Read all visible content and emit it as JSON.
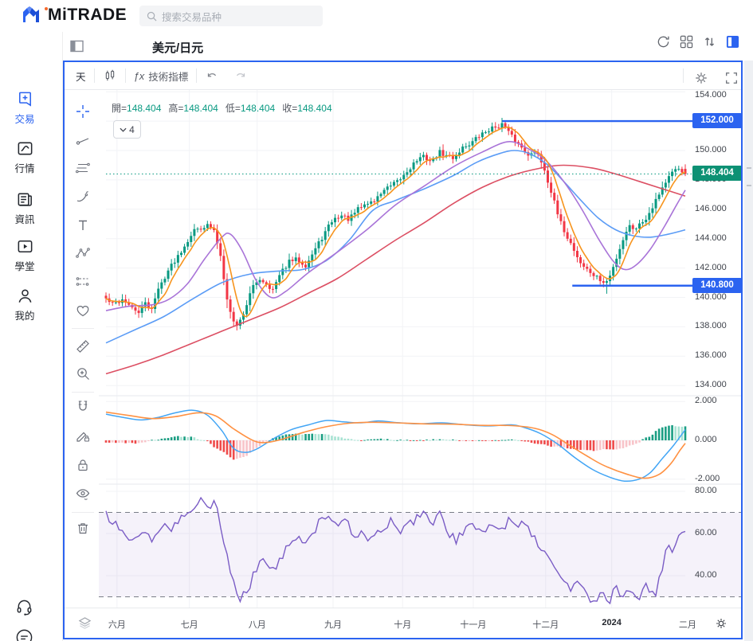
{
  "header": {
    "logo_text": "MiTRADE",
    "search_placeholder": "搜索交易品种"
  },
  "sidebar": {
    "items": [
      {
        "id": "trade",
        "label": "交易",
        "active": true
      },
      {
        "id": "markets",
        "label": "行情",
        "active": false
      },
      {
        "id": "news",
        "label": "資訊",
        "active": false
      },
      {
        "id": "academy",
        "label": "學堂",
        "active": false
      },
      {
        "id": "mine",
        "label": "我的",
        "active": false
      }
    ]
  },
  "symbol_bar": {
    "title": "美元/日元",
    "icons": [
      "refresh-icon",
      "grid-layout-icon",
      "sort-icon",
      "panel-toggle-icon"
    ]
  },
  "chart_toolbar": {
    "timeframe": "天",
    "fx": "ƒx",
    "indicators_label": "技術指標",
    "right_icons": [
      "settings-gear-icon",
      "fullscreen-icon"
    ]
  },
  "legend": {
    "items": [
      {
        "label": "開",
        "key": "open"
      },
      {
        "label": "高",
        "key": "high"
      },
      {
        "label": "低",
        "key": "low"
      },
      {
        "label": "收",
        "key": "close"
      }
    ],
    "ma_dropdown": "4"
  },
  "tools": [
    "crosshair",
    "trend-line",
    "parallel-lines",
    "brush",
    "text",
    "pattern",
    "position",
    "heart",
    "ruler",
    "zoom-in",
    "magnet",
    "draw-lock",
    "lock",
    "eye-hide",
    "trash"
  ],
  "colors": {
    "accent": "#2b63f0",
    "up": "#089981",
    "down": "#f23645",
    "ma_orange": "#f7941d",
    "ma_purple": "#a974d8",
    "ma_blue": "#5b9cf6",
    "ma_red": "#dc4f63",
    "macd_line": "#42a5f5",
    "macd_signal": "#ff9142",
    "hist_pos": "#1b9e83",
    "hist_pos_weak": "#a8e3d3",
    "hist_neg": "#ef4a4a",
    "hist_neg_weak": "#f8c4c9",
    "rsi": "#7a5cc5",
    "grid": "#f2f3f6",
    "separator": "#e7eaee",
    "text_gray": "#787b86"
  },
  "chart_data": {
    "type": "candlestick",
    "symbol": "美元/日元",
    "timeframe": "天",
    "ohlc": {
      "open": "148.404",
      "high": "148.404",
      "low": "148.404",
      "close": "148.404"
    },
    "num_candles": 178,
    "price_axis": {
      "ticks": [
        {
          "v": 154,
          "label": "154.000"
        },
        {
          "v": 152,
          "label": "152.000"
        },
        {
          "v": 150,
          "label": "150.000"
        },
        {
          "v": 148,
          "label": "148.000"
        },
        {
          "v": 146,
          "label": "146.000"
        },
        {
          "v": 144,
          "label": "144.000"
        },
        {
          "v": 142,
          "label": "142.000"
        },
        {
          "v": 140,
          "label": "140.000"
        },
        {
          "v": 138,
          "label": "138.000"
        },
        {
          "v": 136,
          "label": "136.000"
        },
        {
          "v": 134,
          "label": "134.000"
        }
      ],
      "current_price": 148.404,
      "current_label": "148.404"
    },
    "drawn_lines": [
      {
        "price": 152.0,
        "label": "152.000",
        "start_t": 0.684
      },
      {
        "price": 140.8,
        "label": "140.800",
        "start_t": 0.805
      }
    ],
    "months": [
      {
        "label": "六月",
        "t": 0.019,
        "bold": false
      },
      {
        "label": "七月",
        "t": 0.144,
        "bold": false
      },
      {
        "label": "八月",
        "t": 0.261,
        "bold": false
      },
      {
        "label": "九月",
        "t": 0.392,
        "bold": false
      },
      {
        "label": "十月",
        "t": 0.512,
        "bold": false
      },
      {
        "label": "十一月",
        "t": 0.634,
        "bold": false
      },
      {
        "label": "十二月",
        "t": 0.759,
        "bold": false
      },
      {
        "label": "2024",
        "t": 0.873,
        "bold": true
      },
      {
        "label": "二月",
        "t": 1.004,
        "bold": false
      }
    ],
    "close_anchors": [
      [
        0,
        139.9
      ],
      [
        0.012,
        139.5
      ],
      [
        0.03,
        139.9
      ],
      [
        0.045,
        139.2
      ],
      [
        0.058,
        139.0
      ],
      [
        0.068,
        139.6
      ],
      [
        0.078,
        139.2
      ],
      [
        0.09,
        140.5
      ],
      [
        0.105,
        141.7
      ],
      [
        0.12,
        142.6
      ],
      [
        0.135,
        143.5
      ],
      [
        0.15,
        144.5
      ],
      [
        0.165,
        144.8
      ],
      [
        0.178,
        144.9
      ],
      [
        0.188,
        144.4
      ],
      [
        0.198,
        142.8
      ],
      [
        0.208,
        140.2
      ],
      [
        0.218,
        138.4
      ],
      [
        0.228,
        138.1
      ],
      [
        0.24,
        139.2
      ],
      [
        0.252,
        140.6
      ],
      [
        0.265,
        141.3
      ],
      [
        0.278,
        140.9
      ],
      [
        0.288,
        140.5
      ],
      [
        0.3,
        141.5
      ],
      [
        0.315,
        142.4
      ],
      [
        0.33,
        142.6
      ],
      [
        0.345,
        142.2
      ],
      [
        0.36,
        143.2
      ],
      [
        0.375,
        144.2
      ],
      [
        0.39,
        145.2
      ],
      [
        0.405,
        145.6
      ],
      [
        0.42,
        145.3
      ],
      [
        0.435,
        146.0
      ],
      [
        0.45,
        146.4
      ],
      [
        0.465,
        146.6
      ],
      [
        0.478,
        147.3
      ],
      [
        0.49,
        147.5
      ],
      [
        0.505,
        147.9
      ],
      [
        0.52,
        148.6
      ],
      [
        0.535,
        149.3
      ],
      [
        0.55,
        149.6
      ],
      [
        0.562,
        149.2
      ],
      [
        0.575,
        149.9
      ],
      [
        0.588,
        149.6
      ],
      [
        0.6,
        149.5
      ],
      [
        0.615,
        150.2
      ],
      [
        0.63,
        150.5
      ],
      [
        0.645,
        151.0
      ],
      [
        0.66,
        151.4
      ],
      [
        0.672,
        151.6
      ],
      [
        0.685,
        151.8
      ],
      [
        0.695,
        151.2
      ],
      [
        0.708,
        150.6
      ],
      [
        0.72,
        150.1
      ],
      [
        0.732,
        149.7
      ],
      [
        0.745,
        149.9
      ],
      [
        0.758,
        148.6
      ],
      [
        0.77,
        147.0
      ],
      [
        0.782,
        145.3
      ],
      [
        0.794,
        144.3
      ],
      [
        0.806,
        143.4
      ],
      [
        0.818,
        142.4
      ],
      [
        0.83,
        141.9
      ],
      [
        0.842,
        141.5
      ],
      [
        0.852,
        141.2
      ],
      [
        0.862,
        140.9
      ],
      [
        0.872,
        141.6
      ],
      [
        0.882,
        142.8
      ],
      [
        0.892,
        143.9
      ],
      [
        0.902,
        144.9
      ],
      [
        0.912,
        144.7
      ],
      [
        0.922,
        145.0
      ],
      [
        0.932,
        145.4
      ],
      [
        0.942,
        146.1
      ],
      [
        0.952,
        146.9
      ],
      [
        0.962,
        147.6
      ],
      [
        0.972,
        148.2
      ],
      [
        0.982,
        148.6
      ],
      [
        0.99,
        148.8
      ],
      [
        1,
        148.404
      ]
    ],
    "ma_purple_anchors": [
      [
        0,
        139.1
      ],
      [
        0.04,
        139.4
      ],
      [
        0.08,
        139.5
      ],
      [
        0.11,
        139.9
      ],
      [
        0.14,
        140.9
      ],
      [
        0.17,
        142.6
      ],
      [
        0.2,
        144.1
      ],
      [
        0.215,
        144.3
      ],
      [
        0.235,
        143.2
      ],
      [
        0.26,
        141.1
      ],
      [
        0.285,
        140.0
      ],
      [
        0.31,
        140.4
      ],
      [
        0.35,
        141.7
      ],
      [
        0.4,
        143.1
      ],
      [
        0.45,
        144.6
      ],
      [
        0.5,
        146.3
      ],
      [
        0.55,
        147.6
      ],
      [
        0.6,
        148.9
      ],
      [
        0.65,
        149.9
      ],
      [
        0.695,
        150.6
      ],
      [
        0.73,
        150.1
      ],
      [
        0.76,
        149.3
      ],
      [
        0.79,
        147.9
      ],
      [
        0.82,
        146.1
      ],
      [
        0.85,
        144.0
      ],
      [
        0.875,
        142.5
      ],
      [
        0.895,
        141.9
      ],
      [
        0.915,
        142.2
      ],
      [
        0.94,
        143.3
      ],
      [
        0.965,
        144.9
      ],
      [
        0.985,
        146.3
      ],
      [
        1,
        147.3
      ]
    ],
    "ma_blue_anchors": [
      [
        0,
        136.9
      ],
      [
        0.05,
        137.8
      ],
      [
        0.1,
        138.7
      ],
      [
        0.15,
        139.9
      ],
      [
        0.2,
        141.0
      ],
      [
        0.25,
        141.6
      ],
      [
        0.3,
        141.8
      ],
      [
        0.34,
        141.9
      ],
      [
        0.38,
        142.5
      ],
      [
        0.42,
        143.9
      ],
      [
        0.46,
        145.9
      ],
      [
        0.5,
        146.6
      ],
      [
        0.55,
        147.4
      ],
      [
        0.6,
        148.3
      ],
      [
        0.64,
        149.2
      ],
      [
        0.68,
        149.8
      ],
      [
        0.705,
        150.0
      ],
      [
        0.73,
        149.8
      ],
      [
        0.76,
        149.1
      ],
      [
        0.79,
        147.9
      ],
      [
        0.82,
        146.6
      ],
      [
        0.85,
        145.4
      ],
      [
        0.88,
        144.6
      ],
      [
        0.91,
        144.2
      ],
      [
        0.94,
        144.1
      ],
      [
        0.97,
        144.3
      ],
      [
        1,
        144.6
      ]
    ],
    "ma_red_anchors": [
      [
        0,
        134.8
      ],
      [
        0.05,
        135.4
      ],
      [
        0.1,
        136.1
      ],
      [
        0.15,
        136.9
      ],
      [
        0.2,
        137.7
      ],
      [
        0.25,
        138.5
      ],
      [
        0.3,
        139.3
      ],
      [
        0.35,
        140.3
      ],
      [
        0.4,
        141.3
      ],
      [
        0.45,
        142.6
      ],
      [
        0.5,
        143.9
      ],
      [
        0.55,
        145.1
      ],
      [
        0.6,
        146.4
      ],
      [
        0.65,
        147.5
      ],
      [
        0.7,
        148.3
      ],
      [
        0.75,
        148.8
      ],
      [
        0.79,
        149.0
      ],
      [
        0.84,
        148.8
      ],
      [
        0.88,
        148.4
      ],
      [
        0.92,
        147.9
      ],
      [
        0.96,
        147.4
      ],
      [
        1,
        146.9
      ]
    ],
    "macd": {
      "axis": [
        {
          "v": 2,
          "label": "2.000"
        },
        {
          "v": 0,
          "label": "0.000"
        },
        {
          "v": -2,
          "label": "-2.000"
        }
      ],
      "line_anchors": [
        [
          0,
          1.35
        ],
        [
          0.03,
          1.18
        ],
        [
          0.06,
          1.05
        ],
        [
          0.09,
          1.18
        ],
        [
          0.12,
          1.42
        ],
        [
          0.15,
          1.55
        ],
        [
          0.175,
          1.3
        ],
        [
          0.2,
          0.5
        ],
        [
          0.22,
          -0.4
        ],
        [
          0.24,
          -0.62
        ],
        [
          0.26,
          -0.45
        ],
        [
          0.29,
          0.1
        ],
        [
          0.32,
          0.55
        ],
        [
          0.35,
          0.8
        ],
        [
          0.38,
          1.02
        ],
        [
          0.41,
          0.95
        ],
        [
          0.44,
          0.9
        ],
        [
          0.47,
          1.0
        ],
        [
          0.5,
          0.92
        ],
        [
          0.54,
          0.85
        ],
        [
          0.58,
          0.9
        ],
        [
          0.62,
          0.8
        ],
        [
          0.66,
          0.74
        ],
        [
          0.7,
          0.8
        ],
        [
          0.72,
          0.68
        ],
        [
          0.75,
          0.35
        ],
        [
          0.78,
          -0.2
        ],
        [
          0.81,
          -0.9
        ],
        [
          0.84,
          -1.5
        ],
        [
          0.87,
          -1.9
        ],
        [
          0.895,
          -2.1
        ],
        [
          0.92,
          -2.0
        ],
        [
          0.94,
          -1.65
        ],
        [
          0.96,
          -0.95
        ],
        [
          0.98,
          -0.25
        ],
        [
          1,
          0.55
        ]
      ],
      "signal_anchors": [
        [
          0,
          1.45
        ],
        [
          0.04,
          1.28
        ],
        [
          0.08,
          1.12
        ],
        [
          0.12,
          1.22
        ],
        [
          0.16,
          1.42
        ],
        [
          0.19,
          1.25
        ],
        [
          0.22,
          0.6
        ],
        [
          0.25,
          0.05
        ],
        [
          0.27,
          -0.12
        ],
        [
          0.3,
          0.02
        ],
        [
          0.34,
          0.4
        ],
        [
          0.38,
          0.7
        ],
        [
          0.42,
          0.88
        ],
        [
          0.46,
          0.93
        ],
        [
          0.5,
          0.9
        ],
        [
          0.55,
          0.85
        ],
        [
          0.6,
          0.83
        ],
        [
          0.65,
          0.77
        ],
        [
          0.7,
          0.76
        ],
        [
          0.74,
          0.62
        ],
        [
          0.77,
          0.3
        ],
        [
          0.8,
          -0.25
        ],
        [
          0.83,
          -0.8
        ],
        [
          0.86,
          -1.3
        ],
        [
          0.9,
          -1.75
        ],
        [
          0.93,
          -1.95
        ],
        [
          0.955,
          -1.75
        ],
        [
          0.975,
          -1.2
        ],
        [
          0.99,
          -0.55
        ],
        [
          1,
          -0.15
        ]
      ]
    },
    "rsi": {
      "axis": [
        {
          "v": 80,
          "label": "80.00"
        },
        {
          "v": 60,
          "label": "60.00"
        },
        {
          "v": 40,
          "label": "40.00"
        }
      ],
      "upper_band": 70,
      "lower_band": 30,
      "anchors": [
        [
          0,
          69
        ],
        [
          0.02,
          63
        ],
        [
          0.04,
          57
        ],
        [
          0.06,
          60
        ],
        [
          0.08,
          57
        ],
        [
          0.1,
          64
        ],
        [
          0.115,
          61
        ],
        [
          0.13,
          69
        ],
        [
          0.15,
          73
        ],
        [
          0.165,
          76
        ],
        [
          0.178,
          72
        ],
        [
          0.19,
          74
        ],
        [
          0.2,
          60
        ],
        [
          0.215,
          42
        ],
        [
          0.23,
          29
        ],
        [
          0.245,
          33
        ],
        [
          0.26,
          44
        ],
        [
          0.275,
          49
        ],
        [
          0.285,
          41
        ],
        [
          0.3,
          47
        ],
        [
          0.315,
          54
        ],
        [
          0.33,
          60
        ],
        [
          0.345,
          56
        ],
        [
          0.365,
          64
        ],
        [
          0.385,
          70
        ],
        [
          0.4,
          62
        ],
        [
          0.415,
          66
        ],
        [
          0.43,
          57
        ],
        [
          0.445,
          61
        ],
        [
          0.46,
          56
        ],
        [
          0.475,
          62
        ],
        [
          0.49,
          66
        ],
        [
          0.505,
          61
        ],
        [
          0.52,
          64
        ],
        [
          0.535,
          67
        ],
        [
          0.55,
          71
        ],
        [
          0.565,
          65
        ],
        [
          0.578,
          69
        ],
        [
          0.59,
          61
        ],
        [
          0.605,
          57
        ],
        [
          0.62,
          61
        ],
        [
          0.635,
          64
        ],
        [
          0.65,
          62
        ],
        [
          0.665,
          64
        ],
        [
          0.68,
          61
        ],
        [
          0.695,
          66
        ],
        [
          0.71,
          63
        ],
        [
          0.725,
          66
        ],
        [
          0.74,
          57
        ],
        [
          0.755,
          52
        ],
        [
          0.77,
          46
        ],
        [
          0.785,
          40
        ],
        [
          0.8,
          34
        ],
        [
          0.815,
          37
        ],
        [
          0.83,
          30
        ],
        [
          0.84,
          26
        ],
        [
          0.855,
          33
        ],
        [
          0.868,
          27
        ],
        [
          0.88,
          34
        ],
        [
          0.893,
          28
        ],
        [
          0.905,
          35
        ],
        [
          0.917,
          27
        ],
        [
          0.93,
          36
        ],
        [
          0.94,
          32
        ],
        [
          0.95,
          31
        ],
        [
          0.96,
          44
        ],
        [
          0.97,
          54
        ],
        [
          0.978,
          51
        ],
        [
          0.988,
          60
        ],
        [
          1,
          62
        ]
      ]
    }
  }
}
